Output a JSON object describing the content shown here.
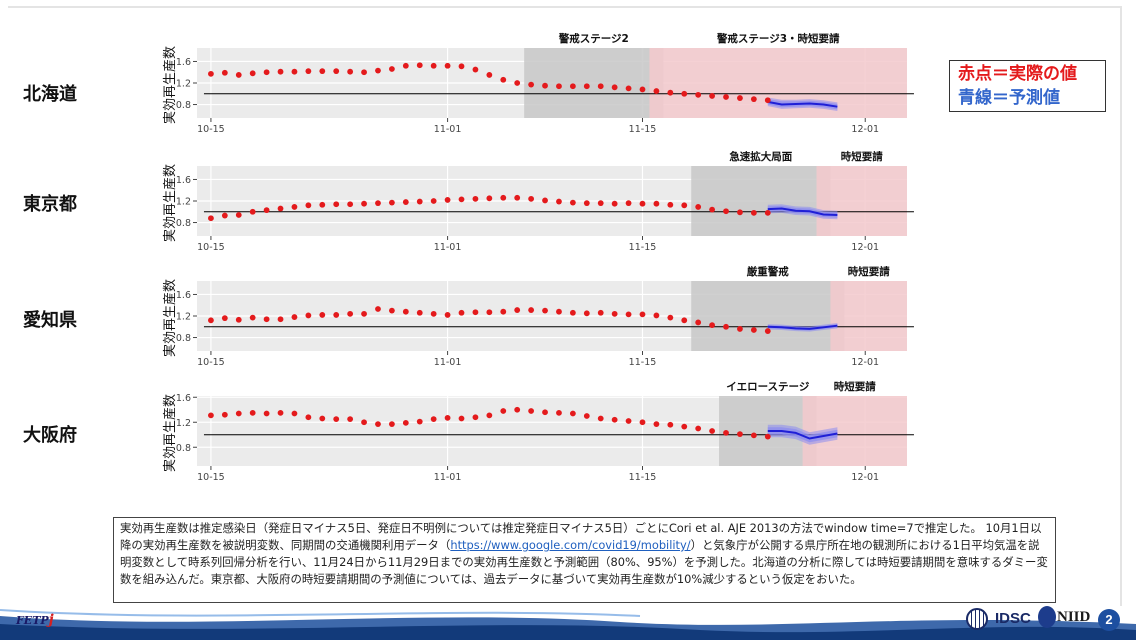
{
  "prefectures": [
    {
      "name": "北海道"
    },
    {
      "name": "東京都"
    },
    {
      "name": "愛知県"
    },
    {
      "name": "大阪府"
    }
  ],
  "legend": {
    "red_label": "赤点＝実際の値",
    "blue_label": "青線＝予測値"
  },
  "note": {
    "text_before": "実効再生産数は推定感染日（発症日マイナス5日、発症日不明例については推定発症日マイナス5日）ごとにCori et al. AJE 2013の方法でwindow time=7で推定した。 10月1日以降の実効再生産数を被説明変数、同期間の交通機関利用データ（",
    "link": "https://www.google.com/covid19/mobility/",
    "text_after": "）と気象庁が公開する県庁所在地の観測所における1日平均気温を説明変数として時系列回帰分析を行い、11月24日から11月29日までの実効再生産数と予測範囲（80%、95%）を予測した。北海道の分析に際しては時短要請期間を意味するダミー変数を組み込んだ。東京都、大阪府の時短要請期間の予測値については、過去データに基づいて実効再生産数が10%減少するという仮定をおいた。"
  },
  "footer": {
    "org1": "FETP",
    "org1_j": "j",
    "org2": "IDSC",
    "org3": "NIID",
    "page": "2"
  },
  "colors": {
    "actual": "#e41a1c",
    "forecast": "#1f1fd6",
    "band": "#8c8cf0",
    "gray_shade": "#c8c8c8",
    "pink_shade": "#f3c9cc",
    "panel_bg": "#ebebeb"
  },
  "chart_data": [
    {
      "type": "scatter",
      "ylabel": "実効再生産数",
      "x_ticks": [
        "10-15",
        "11-01",
        "11-15",
        "12-01"
      ],
      "y_ticks": [
        0.8,
        1.2,
        1.6
      ],
      "ylim": [
        0.55,
        1.85
      ],
      "xlim_days": [
        -1,
        50
      ],
      "reference_line": 1.0,
      "shaded_periods": [
        {
          "label": "警戒ステージ2",
          "start": "11-07",
          "end": "11-16",
          "color": "gray"
        },
        {
          "label": "警戒ステージ3・時短要請",
          "start": "11-16",
          "end": "12-04",
          "color": "pink"
        }
      ],
      "actual": {
        "start": "10-15",
        "values": [
          1.37,
          1.39,
          1.35,
          1.38,
          1.4,
          1.41,
          1.41,
          1.42,
          1.42,
          1.42,
          1.41,
          1.4,
          1.43,
          1.46,
          1.52,
          1.53,
          1.52,
          1.52,
          1.51,
          1.45,
          1.35,
          1.26,
          1.2,
          1.17,
          1.15,
          1.14,
          1.14,
          1.14,
          1.14,
          1.12,
          1.1,
          1.08,
          1.05,
          1.02,
          1.0,
          0.98,
          0.96,
          0.94,
          0.92,
          0.9,
          0.88
        ]
      },
      "forecast": {
        "start": "11-24",
        "end": "11-29",
        "values": [
          0.85,
          0.8,
          0.81,
          0.82,
          0.8,
          0.76
        ],
        "band80": [
          [
            0.8,
            0.9
          ],
          [
            0.75,
            0.86
          ],
          [
            0.76,
            0.86
          ],
          [
            0.77,
            0.87
          ],
          [
            0.75,
            0.85
          ],
          [
            0.71,
            0.81
          ]
        ],
        "band95": [
          [
            0.77,
            0.93
          ],
          [
            0.72,
            0.89
          ],
          [
            0.73,
            0.89
          ],
          [
            0.74,
            0.9
          ],
          [
            0.72,
            0.88
          ],
          [
            0.68,
            0.84
          ]
        ]
      }
    },
    {
      "type": "scatter",
      "ylabel": "実効再生産数",
      "x_ticks": [
        "10-15",
        "11-01",
        "11-15",
        "12-01"
      ],
      "y_ticks": [
        0.8,
        1.2,
        1.6
      ],
      "ylim": [
        0.55,
        1.85
      ],
      "xlim_days": [
        -1,
        50
      ],
      "reference_line": 1.0,
      "shaded_periods": [
        {
          "label": "急速拡大局面",
          "start": "11-19",
          "end": "11-28",
          "color": "gray"
        },
        {
          "label": "時短要請",
          "start": "11-28",
          "end": "12-04",
          "color": "pink"
        }
      ],
      "actual": {
        "start": "10-15",
        "values": [
          0.88,
          0.93,
          0.94,
          1.0,
          1.03,
          1.06,
          1.09,
          1.12,
          1.13,
          1.14,
          1.14,
          1.15,
          1.16,
          1.17,
          1.18,
          1.19,
          1.2,
          1.22,
          1.23,
          1.24,
          1.25,
          1.26,
          1.26,
          1.24,
          1.21,
          1.19,
          1.17,
          1.16,
          1.16,
          1.15,
          1.16,
          1.15,
          1.15,
          1.13,
          1.12,
          1.09,
          1.04,
          1.01,
          0.99,
          0.98,
          0.98
        ]
      },
      "forecast": {
        "start": "11-24",
        "end": "11-29",
        "values": [
          1.05,
          1.06,
          1.02,
          1.01,
          0.95,
          0.94
        ],
        "band80": [
          [
            1.0,
            1.1
          ],
          [
            1.01,
            1.11
          ],
          [
            0.97,
            1.07
          ],
          [
            0.96,
            1.06
          ],
          [
            0.9,
            1.0
          ],
          [
            0.89,
            0.99
          ]
        ],
        "band95": [
          [
            0.97,
            1.13
          ],
          [
            0.98,
            1.14
          ],
          [
            0.94,
            1.1
          ],
          [
            0.93,
            1.09
          ],
          [
            0.87,
            1.03
          ],
          [
            0.86,
            1.02
          ]
        ]
      }
    },
    {
      "type": "scatter",
      "ylabel": "実効再生産数",
      "x_ticks": [
        "10-15",
        "11-01",
        "11-15",
        "12-01"
      ],
      "y_ticks": [
        0.8,
        1.2,
        1.6
      ],
      "ylim": [
        0.55,
        1.85
      ],
      "xlim_days": [
        -1,
        50
      ],
      "reference_line": 1.0,
      "shaded_periods": [
        {
          "label": "厳重警戒",
          "start": "11-19",
          "end": "11-29",
          "color": "gray"
        },
        {
          "label": "時短要請",
          "start": "11-29",
          "end": "12-04",
          "color": "pink"
        }
      ],
      "actual": {
        "start": "10-15",
        "values": [
          1.12,
          1.16,
          1.13,
          1.17,
          1.14,
          1.14,
          1.18,
          1.21,
          1.22,
          1.22,
          1.24,
          1.24,
          1.33,
          1.3,
          1.28,
          1.26,
          1.24,
          1.22,
          1.26,
          1.27,
          1.27,
          1.28,
          1.31,
          1.31,
          1.3,
          1.28,
          1.26,
          1.25,
          1.26,
          1.24,
          1.23,
          1.23,
          1.21,
          1.17,
          1.12,
          1.08,
          1.03,
          1.0,
          0.96,
          0.94,
          0.92
        ]
      },
      "forecast": {
        "start": "11-24",
        "end": "11-29",
        "values": [
          1.0,
          0.99,
          0.97,
          0.96,
          0.99,
          1.02
        ],
        "band80": [
          [
            0.97,
            1.03
          ],
          [
            0.96,
            1.02
          ],
          [
            0.94,
            1.0
          ],
          [
            0.93,
            0.99
          ],
          [
            0.96,
            1.02
          ],
          [
            0.99,
            1.05
          ]
        ],
        "band95": [
          [
            0.95,
            1.05
          ],
          [
            0.94,
            1.04
          ],
          [
            0.92,
            1.02
          ],
          [
            0.91,
            1.01
          ],
          [
            0.94,
            1.04
          ],
          [
            0.97,
            1.07
          ]
        ]
      }
    },
    {
      "type": "scatter",
      "ylabel": "実効再生産数",
      "x_ticks": [
        "10-15",
        "11-01",
        "11-15",
        "12-01"
      ],
      "y_ticks": [
        0.8,
        1.2,
        1.6
      ],
      "ylim": [
        0.5,
        1.62
      ],
      "xlim_days": [
        -1,
        50
      ],
      "reference_line": 1.0,
      "shaded_periods": [
        {
          "label": "イエローステージ",
          "start": "11-21",
          "end": "11-27",
          "color": "gray"
        },
        {
          "label": "時短要請",
          "start": "11-27",
          "end": "12-04",
          "color": "pink"
        }
      ],
      "actual": {
        "start": "10-15",
        "values": [
          1.31,
          1.32,
          1.34,
          1.35,
          1.34,
          1.35,
          1.34,
          1.28,
          1.26,
          1.25,
          1.25,
          1.2,
          1.17,
          1.17,
          1.19,
          1.21,
          1.25,
          1.27,
          1.26,
          1.28,
          1.31,
          1.38,
          1.4,
          1.38,
          1.36,
          1.35,
          1.34,
          1.3,
          1.26,
          1.24,
          1.22,
          1.2,
          1.17,
          1.16,
          1.13,
          1.1,
          1.06,
          1.03,
          1.01,
          0.99,
          0.97
        ]
      },
      "forecast": {
        "start": "11-24",
        "end": "11-29",
        "values": [
          1.06,
          1.06,
          1.03,
          0.94,
          0.98,
          1.02
        ],
        "band80": [
          [
            1.0,
            1.12
          ],
          [
            1.0,
            1.12
          ],
          [
            0.97,
            1.09
          ],
          [
            0.88,
            1.0
          ],
          [
            0.92,
            1.04
          ],
          [
            0.96,
            1.08
          ]
        ],
        "band95": [
          [
            0.96,
            1.16
          ],
          [
            0.96,
            1.16
          ],
          [
            0.93,
            1.13
          ],
          [
            0.84,
            1.04
          ],
          [
            0.88,
            1.08
          ],
          [
            0.92,
            1.12
          ]
        ]
      }
    }
  ]
}
